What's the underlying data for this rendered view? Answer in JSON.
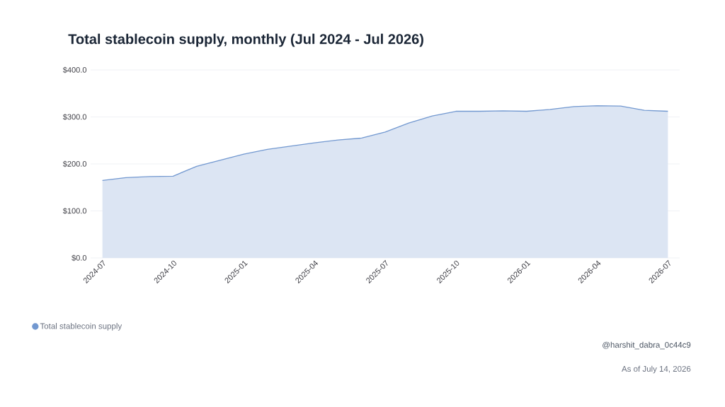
{
  "chart_data": {
    "type": "area",
    "title": "Total stablecoin supply, monthly (Jul 2024 - Jul 2026)",
    "categories": [
      "2024-07",
      null,
      null,
      "2024-10",
      null,
      null,
      "2025-01",
      null,
      null,
      "2025-04",
      null,
      null,
      "2025-07",
      null,
      null,
      "2025-10",
      null,
      null,
      "2026-01",
      null,
      null,
      "2026-04",
      null,
      null,
      "2026-07"
    ],
    "series": [
      {
        "name": "Total stablecoin supply",
        "color": "#7298d0",
        "values": [
          165,
          171,
          173,
          174,
          195,
          208,
          221,
          231,
          238,
          245,
          251,
          255,
          268,
          287,
          302,
          312,
          312,
          313,
          312,
          316,
          322,
          324,
          323,
          314,
          312
        ]
      }
    ],
    "ylim": [
      0,
      400
    ],
    "yticks": [
      {
        "value": 0,
        "label": "$0.0"
      },
      {
        "value": 100,
        "label": "$100.0"
      },
      {
        "value": 200,
        "label": "$200.0"
      },
      {
        "value": 300,
        "label": "$300.0"
      },
      {
        "value": 400,
        "label": "$400.0"
      }
    ],
    "grid": "y",
    "legend": "bottom left",
    "annotations": [
      "@harshit_dabra_0c44c9",
      "As of July 14, 2026"
    ]
  }
}
